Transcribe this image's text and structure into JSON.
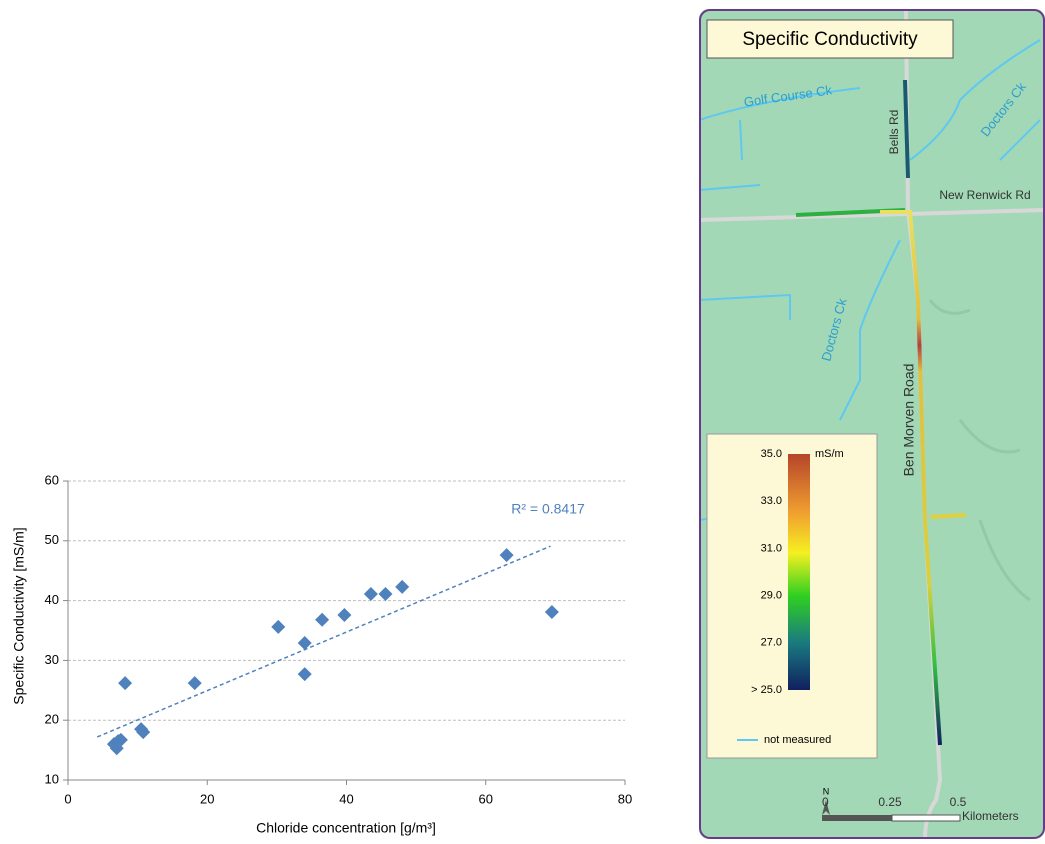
{
  "chart_data": {
    "type": "scatter",
    "x_label": "Chloride concentration [g/m³]",
    "y_label": "Specific Conductivity [mS/m]",
    "annotation": "R² = 0.8417",
    "color": "#4f81bd",
    "x": [
      6.6,
      7.0,
      7.6,
      7.2,
      8.2,
      10.5,
      10.8,
      18.2,
      30.2,
      34.0,
      34.0,
      36.5,
      39.7,
      43.5,
      45.6,
      48.0,
      63.0,
      69.5
    ],
    "values": [
      16,
      15.3,
      16.7,
      16.5,
      26.2,
      18.5,
      18.0,
      26.2,
      35.6,
      32.9,
      27.7,
      36.8,
      37.6,
      41.1,
      41.1,
      42.3,
      47.6,
      38.1
    ],
    "trendline": {
      "x": [
        4.2,
        69.3
      ],
      "values": [
        17.2,
        49.1
      ]
    },
    "xlim": [
      0,
      80
    ],
    "xticks": [
      0,
      20,
      40,
      60,
      80
    ],
    "ylim": [
      10,
      60
    ],
    "yticks": [
      10,
      20,
      30,
      40,
      50,
      60
    ],
    "grid": true
  },
  "map": {
    "title": "Specific Conductivity",
    "labels": [
      "Golf Course Ck",
      "Doctors Ck",
      "Bells Rd",
      "New Renwick Rd",
      "Doctors Ck",
      "Ben Morven Road"
    ],
    "legend": {
      "ticks": [
        "35.0",
        "33.0",
        "31.0",
        "29.0",
        "27.0",
        "> 25.0"
      ],
      "unit": "mS/m",
      "not_measured": "not measured"
    },
    "scale": {
      "ticks": [
        "0",
        "0.25",
        "0.5"
      ],
      "unit": "Kilometers",
      "north": "N"
    }
  }
}
